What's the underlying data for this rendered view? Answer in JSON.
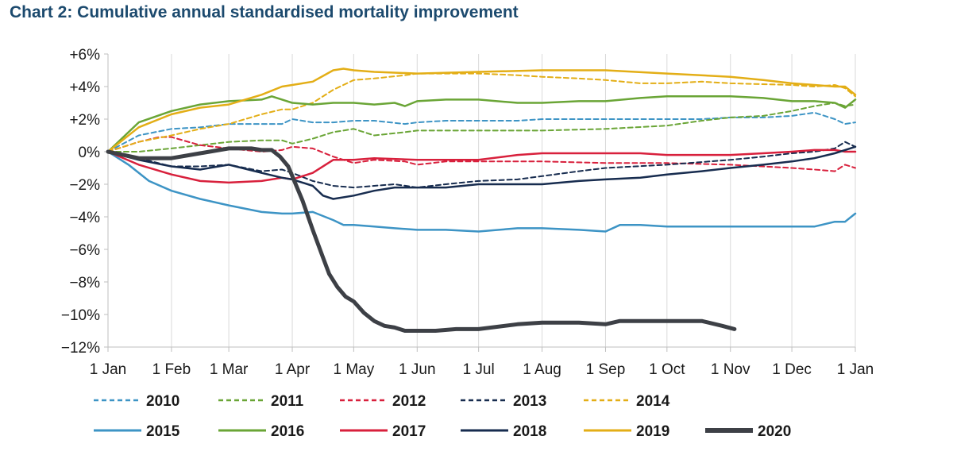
{
  "chart_data": {
    "type": "line",
    "title": "Chart 2: Cumulative annual standardised mortality improvement",
    "xlabel": "",
    "ylabel": "",
    "x_ticks": [
      "1 Jan",
      "1 Feb",
      "1 Mar",
      "1 Apr",
      "1 May",
      "1 Jun",
      "1 Jul",
      "1 Aug",
      "1 Sep",
      "1 Oct",
      "1 Nov",
      "1 Dec",
      "1 Jan"
    ],
    "x_tick_days": [
      0,
      31,
      59,
      90,
      120,
      151,
      181,
      212,
      243,
      273,
      304,
      334,
      365
    ],
    "x_unit": "day of year (0 = 1 Jan)",
    "ylim": [
      -12,
      6
    ],
    "y_ticks": [
      6,
      4,
      2,
      0,
      -2,
      -4,
      -6,
      -8,
      -10,
      -12
    ],
    "y_tick_labels": [
      "+6%",
      "+4%",
      "+2%",
      "0%",
      "−2%",
      "−4%",
      "−6%",
      "−8%",
      "−10%",
      "−12%"
    ],
    "grid": "vertical",
    "legend_position": "bottom",
    "series": [
      {
        "name": "2010",
        "color": "#3d94c5",
        "dash": "dashed",
        "width": 2,
        "x": [
          0,
          15,
          31,
          45,
          59,
          75,
          85,
          90,
          100,
          110,
          120,
          130,
          145,
          151,
          165,
          181,
          200,
          212,
          230,
          243,
          260,
          273,
          290,
          304,
          320,
          334,
          345,
          355,
          360,
          365
        ],
        "y": [
          0,
          1.0,
          1.4,
          1.5,
          1.7,
          1.7,
          1.7,
          2.0,
          1.8,
          1.8,
          1.9,
          1.9,
          1.7,
          1.8,
          1.9,
          1.9,
          1.9,
          2.0,
          2.0,
          2.0,
          2.0,
          2.0,
          2.0,
          2.1,
          2.1,
          2.2,
          2.4,
          2.0,
          1.7,
          1.8
        ]
      },
      {
        "name": "2011",
        "color": "#6aa536",
        "dash": "dashed",
        "width": 2,
        "x": [
          0,
          15,
          31,
          45,
          59,
          75,
          85,
          90,
          100,
          110,
          120,
          130,
          145,
          151,
          181,
          212,
          243,
          273,
          290,
          304,
          320,
          334,
          345,
          355,
          360,
          365
        ],
        "y": [
          0,
          0,
          0.2,
          0.4,
          0.6,
          0.7,
          0.7,
          0.5,
          0.8,
          1.2,
          1.4,
          1.0,
          1.2,
          1.3,
          1.3,
          1.3,
          1.4,
          1.6,
          1.9,
          2.1,
          2.2,
          2.5,
          2.8,
          3.0,
          2.8,
          2.9
        ]
      },
      {
        "name": "2012",
        "color": "#d8203c",
        "dash": "dashed",
        "width": 2,
        "x": [
          0,
          15,
          25,
          31,
          45,
          59,
          75,
          85,
          90,
          100,
          110,
          120,
          130,
          145,
          151,
          165,
          181,
          212,
          243,
          273,
          304,
          334,
          345,
          355,
          360,
          365
        ],
        "y": [
          0,
          0.6,
          0.9,
          0.9,
          0.4,
          0.2,
          0,
          0.1,
          0.3,
          0.2,
          -0.3,
          -0.7,
          -0.5,
          -0.6,
          -0.8,
          -0.6,
          -0.6,
          -0.6,
          -0.7,
          -0.7,
          -0.8,
          -1.0,
          -1.1,
          -1.2,
          -0.8,
          -1.0
        ]
      },
      {
        "name": "2013",
        "color": "#172c4f",
        "dash": "dashed",
        "width": 2,
        "x": [
          0,
          15,
          31,
          45,
          59,
          75,
          85,
          90,
          100,
          110,
          120,
          130,
          140,
          151,
          165,
          181,
          200,
          212,
          230,
          243,
          273,
          304,
          320,
          334,
          345,
          355,
          360,
          365
        ],
        "y": [
          0,
          -0.4,
          -0.9,
          -0.9,
          -0.8,
          -1.2,
          -1.1,
          -1.3,
          -1.8,
          -2.1,
          -2.2,
          -2.1,
          -2.0,
          -2.2,
          -2.0,
          -1.8,
          -1.7,
          -1.5,
          -1.2,
          -1.0,
          -0.8,
          -0.5,
          -0.3,
          -0.1,
          0,
          0.2,
          0.6,
          0.3
        ]
      },
      {
        "name": "2014",
        "color": "#e3ae16",
        "dash": "dashed",
        "width": 2,
        "x": [
          0,
          15,
          31,
          45,
          59,
          75,
          85,
          90,
          100,
          110,
          120,
          130,
          145,
          151,
          181,
          200,
          212,
          230,
          243,
          260,
          273,
          290,
          304,
          334,
          345,
          355,
          360,
          365
        ],
        "y": [
          0,
          0.6,
          1.0,
          1.4,
          1.7,
          2.3,
          2.6,
          2.6,
          3.0,
          3.8,
          4.4,
          4.5,
          4.7,
          4.8,
          4.8,
          4.7,
          4.6,
          4.5,
          4.4,
          4.2,
          4.2,
          4.3,
          4.2,
          4.1,
          4.0,
          4.1,
          3.9,
          3.4
        ]
      },
      {
        "name": "2015",
        "color": "#3d94c5",
        "dash": "solid",
        "width": 2.5,
        "x": [
          0,
          10,
          20,
          31,
          45,
          59,
          75,
          85,
          90,
          100,
          110,
          115,
          120,
          130,
          140,
          151,
          165,
          181,
          200,
          212,
          230,
          243,
          250,
          260,
          273,
          290,
          304,
          320,
          334,
          345,
          355,
          360,
          365
        ],
        "y": [
          0,
          -0.8,
          -1.8,
          -2.4,
          -2.9,
          -3.3,
          -3.7,
          -3.8,
          -3.8,
          -3.7,
          -4.2,
          -4.5,
          -4.5,
          -4.6,
          -4.7,
          -4.8,
          -4.8,
          -4.9,
          -4.7,
          -4.7,
          -4.8,
          -4.9,
          -4.5,
          -4.5,
          -4.6,
          -4.6,
          -4.6,
          -4.6,
          -4.6,
          -4.6,
          -4.3,
          -4.3,
          -3.8
        ]
      },
      {
        "name": "2016",
        "color": "#6aa536",
        "dash": "solid",
        "width": 2.5,
        "x": [
          0,
          15,
          31,
          45,
          59,
          75,
          80,
          90,
          100,
          110,
          120,
          130,
          140,
          145,
          151,
          165,
          181,
          200,
          212,
          230,
          243,
          260,
          273,
          290,
          304,
          320,
          334,
          345,
          355,
          360,
          365
        ],
        "y": [
          0,
          1.8,
          2.5,
          2.9,
          3.1,
          3.2,
          3.4,
          3.0,
          2.9,
          3.0,
          3.0,
          2.9,
          3.0,
          2.8,
          3.1,
          3.2,
          3.2,
          3.0,
          3.0,
          3.1,
          3.1,
          3.3,
          3.4,
          3.4,
          3.4,
          3.3,
          3.1,
          3.1,
          3.0,
          2.7,
          3.2
        ]
      },
      {
        "name": "2017",
        "color": "#d8203c",
        "dash": "solid",
        "width": 2.5,
        "x": [
          0,
          15,
          31,
          45,
          59,
          75,
          85,
          90,
          100,
          110,
          120,
          130,
          151,
          165,
          181,
          200,
          212,
          230,
          243,
          260,
          273,
          290,
          304,
          320,
          334,
          345,
          355,
          360,
          365
        ],
        "y": [
          0,
          -0.8,
          -1.4,
          -1.8,
          -1.9,
          -1.8,
          -1.6,
          -1.7,
          -1.3,
          -0.5,
          -0.5,
          -0.4,
          -0.5,
          -0.5,
          -0.5,
          -0.2,
          -0.1,
          -0.1,
          -0.1,
          -0.1,
          -0.2,
          -0.2,
          -0.2,
          -0.1,
          0,
          0.1,
          0.1,
          0,
          0
        ]
      },
      {
        "name": "2018",
        "color": "#172c4f",
        "dash": "solid",
        "width": 2.5,
        "x": [
          0,
          15,
          31,
          45,
          59,
          75,
          85,
          90,
          100,
          105,
          110,
          120,
          130,
          140,
          151,
          165,
          181,
          200,
          212,
          230,
          243,
          260,
          273,
          290,
          304,
          320,
          334,
          345,
          355,
          360,
          365
        ],
        "y": [
          0,
          -0.5,
          -0.9,
          -1.1,
          -0.8,
          -1.3,
          -1.6,
          -1.7,
          -2.1,
          -2.7,
          -2.9,
          -2.7,
          -2.4,
          -2.2,
          -2.2,
          -2.2,
          -2.0,
          -2.0,
          -2.0,
          -1.8,
          -1.7,
          -1.6,
          -1.4,
          -1.2,
          -1.0,
          -0.8,
          -0.6,
          -0.4,
          -0.1,
          0.1,
          0.3
        ]
      },
      {
        "name": "2019",
        "color": "#e3ae16",
        "dash": "solid",
        "width": 2.5,
        "x": [
          0,
          15,
          31,
          45,
          59,
          75,
          85,
          90,
          100,
          110,
          115,
          120,
          130,
          151,
          181,
          212,
          243,
          273,
          304,
          320,
          334,
          345,
          355,
          360,
          365
        ],
        "y": [
          0,
          1.5,
          2.3,
          2.7,
          2.9,
          3.5,
          4.0,
          4.1,
          4.3,
          5.0,
          5.1,
          5.0,
          4.9,
          4.8,
          4.9,
          5.0,
          5.0,
          4.8,
          4.6,
          4.4,
          4.2,
          4.1,
          4.0,
          4.0,
          3.5
        ]
      },
      {
        "name": "2020",
        "color": "#3d4046",
        "dash": "solid",
        "width": 5,
        "x": [
          0,
          15,
          31,
          45,
          59,
          70,
          75,
          80,
          84,
          88,
          91,
          95,
          100,
          105,
          108,
          112,
          116,
          120,
          125,
          130,
          135,
          140,
          145,
          151,
          160,
          170,
          181,
          200,
          212,
          230,
          243,
          250,
          260,
          273,
          290,
          300,
          306
        ],
        "y": [
          0,
          -0.4,
          -0.4,
          -0.1,
          0.2,
          0.2,
          0.1,
          0.1,
          -0.3,
          -0.9,
          -1.8,
          -3.0,
          -4.8,
          -6.5,
          -7.5,
          -8.3,
          -8.9,
          -9.2,
          -9.9,
          -10.4,
          -10.7,
          -10.8,
          -11.0,
          -11.0,
          -11.0,
          -10.9,
          -10.9,
          -10.6,
          -10.5,
          -10.5,
          -10.6,
          -10.4,
          -10.4,
          -10.4,
          -10.4,
          -10.7,
          -10.9
        ]
      }
    ]
  }
}
